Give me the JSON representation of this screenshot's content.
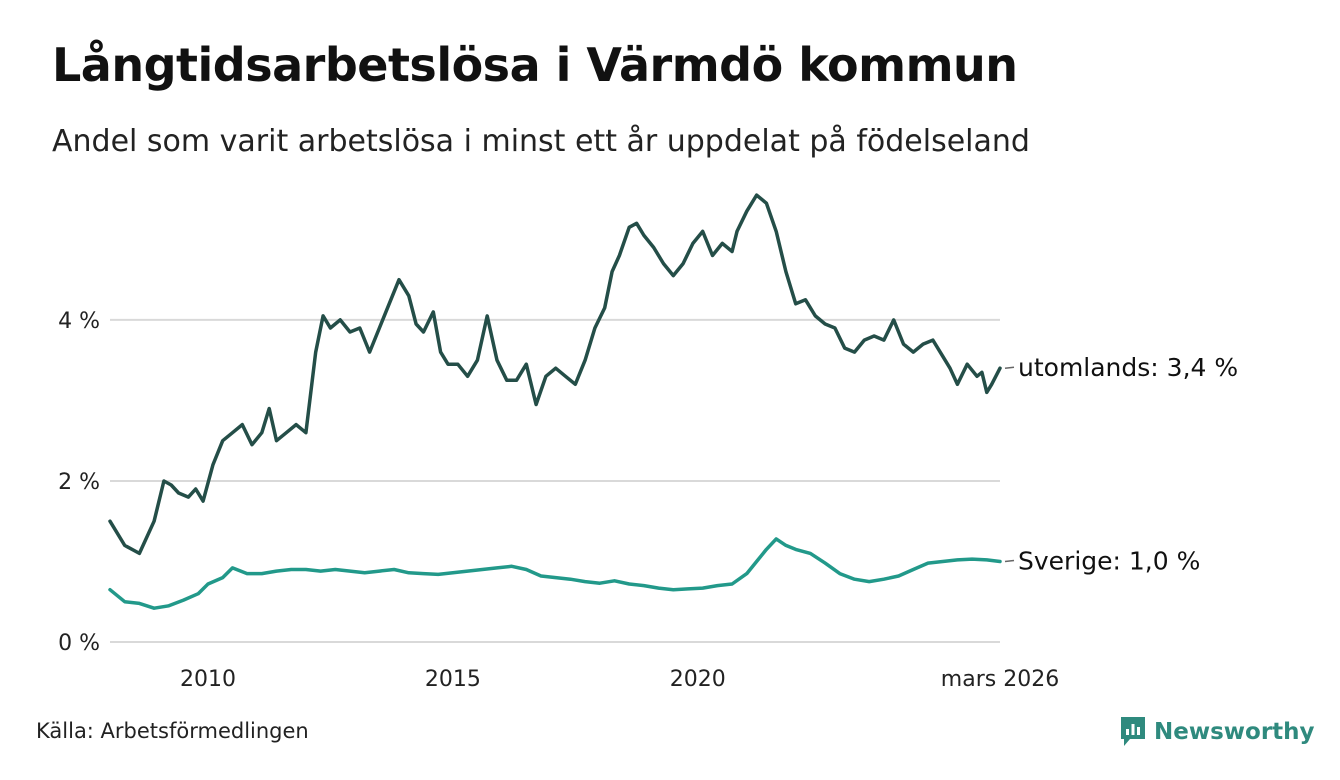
{
  "header": {
    "title": "Långtidsarbetslösa i Värmdö kommun",
    "subtitle": "Andel som varit arbetslösa i minst ett år uppdelat på födelseland"
  },
  "footer": {
    "source": "Källa: Arbetsförmedlingen",
    "brand": "Newsworthy",
    "brand_icon": "newsworthy-logo-icon"
  },
  "colors": {
    "utomlands": "#244e48",
    "sverige": "#22998a",
    "grid": "#d9d9d9",
    "brand": "#2f8a7e"
  },
  "chart_data": {
    "type": "line",
    "title": "Långtidsarbetslösa i Värmdö kommun",
    "subtitle": "Andel som varit arbetslösa i minst ett år uppdelat på födelseland",
    "xlabel": "",
    "ylabel": "",
    "x_range": [
      2008.0,
      2026.17
    ],
    "ylim": [
      0,
      5.8
    ],
    "y_ticks": [
      0,
      2,
      4
    ],
    "y_tick_labels": [
      "0 %",
      "2 %",
      "4 %"
    ],
    "x_ticks": [
      2010,
      2015,
      2020,
      2026.17
    ],
    "x_tick_labels": [
      "2010",
      "2015",
      "2020",
      "mars 2026"
    ],
    "grid": true,
    "legend": "end-of-line labels at right",
    "series": [
      {
        "name": "utomlands",
        "end_label": "utomlands: 3,4 %",
        "x": [
          2008.0,
          2008.3,
          2008.6,
          2008.9,
          2009.1,
          2009.25,
          2009.4,
          2009.6,
          2009.75,
          2009.9,
          2010.1,
          2010.3,
          2010.5,
          2010.7,
          2010.9,
          2011.1,
          2011.25,
          2011.4,
          2011.6,
          2011.8,
          2012.0,
          2012.2,
          2012.35,
          2012.5,
          2012.7,
          2012.9,
          2013.1,
          2013.3,
          2013.5,
          2013.7,
          2013.9,
          2014.1,
          2014.25,
          2014.4,
          2014.6,
          2014.75,
          2014.9,
          2015.1,
          2015.3,
          2015.5,
          2015.7,
          2015.9,
          2016.1,
          2016.3,
          2016.5,
          2016.7,
          2016.9,
          2017.1,
          2017.3,
          2017.5,
          2017.7,
          2017.9,
          2018.1,
          2018.25,
          2018.4,
          2018.6,
          2018.75,
          2018.9,
          2019.1,
          2019.3,
          2019.5,
          2019.7,
          2019.9,
          2020.1,
          2020.3,
          2020.5,
          2020.7,
          2020.8,
          2021.0,
          2021.2,
          2021.4,
          2021.6,
          2021.8,
          2022.0,
          2022.2,
          2022.4,
          2022.6,
          2022.8,
          2023.0,
          2023.2,
          2023.4,
          2023.6,
          2023.8,
          2024.0,
          2024.2,
          2024.4,
          2024.6,
          2024.8,
          2025.0,
          2025.15,
          2025.3,
          2025.5,
          2025.7,
          2025.8,
          2025.9,
          2026.0,
          2026.17
        ],
        "values": [
          1.5,
          1.2,
          1.1,
          1.5,
          2.0,
          1.95,
          1.85,
          1.8,
          1.9,
          1.75,
          2.2,
          2.5,
          2.6,
          2.7,
          2.45,
          2.6,
          2.9,
          2.5,
          2.6,
          2.7,
          2.6,
          3.6,
          4.05,
          3.9,
          4.0,
          3.85,
          3.9,
          3.6,
          3.9,
          4.2,
          4.5,
          4.3,
          3.95,
          3.85,
          4.1,
          3.6,
          3.45,
          3.45,
          3.3,
          3.5,
          4.05,
          3.5,
          3.25,
          3.25,
          3.45,
          2.95,
          3.3,
          3.4,
          3.3,
          3.2,
          3.5,
          3.9,
          4.15,
          4.6,
          4.8,
          5.15,
          5.2,
          5.05,
          4.9,
          4.7,
          4.55,
          4.7,
          4.95,
          5.1,
          4.8,
          4.95,
          4.85,
          5.1,
          5.35,
          5.55,
          5.45,
          5.1,
          4.6,
          4.2,
          4.25,
          4.05,
          3.95,
          3.9,
          3.65,
          3.6,
          3.75,
          3.8,
          3.75,
          4.0,
          3.7,
          3.6,
          3.7,
          3.75,
          3.55,
          3.4,
          3.2,
          3.45,
          3.3,
          3.35,
          3.1,
          3.2,
          3.4
        ]
      },
      {
        "name": "Sverige",
        "end_label": "Sverige: 1,0 %",
        "x": [
          2008.0,
          2008.3,
          2008.6,
          2008.9,
          2009.2,
          2009.5,
          2009.8,
          2010.0,
          2010.3,
          2010.5,
          2010.8,
          2011.1,
          2011.4,
          2011.7,
          2012.0,
          2012.3,
          2012.6,
          2012.9,
          2013.2,
          2013.5,
          2013.8,
          2014.1,
          2014.4,
          2014.7,
          2015.0,
          2015.3,
          2015.6,
          2015.9,
          2016.2,
          2016.5,
          2016.8,
          2017.1,
          2017.4,
          2017.7,
          2018.0,
          2018.3,
          2018.6,
          2018.9,
          2019.2,
          2019.5,
          2019.8,
          2020.1,
          2020.4,
          2020.7,
          2021.0,
          2021.2,
          2021.4,
          2021.6,
          2021.8,
          2022.0,
          2022.3,
          2022.6,
          2022.9,
          2023.2,
          2023.5,
          2023.8,
          2024.1,
          2024.4,
          2024.7,
          2025.0,
          2025.3,
          2025.6,
          2025.9,
          2026.17
        ],
        "values": [
          0.65,
          0.5,
          0.48,
          0.42,
          0.45,
          0.52,
          0.6,
          0.72,
          0.8,
          0.92,
          0.85,
          0.85,
          0.88,
          0.9,
          0.9,
          0.88,
          0.9,
          0.88,
          0.86,
          0.88,
          0.9,
          0.86,
          0.85,
          0.84,
          0.86,
          0.88,
          0.9,
          0.92,
          0.94,
          0.9,
          0.82,
          0.8,
          0.78,
          0.75,
          0.73,
          0.76,
          0.72,
          0.7,
          0.67,
          0.65,
          0.66,
          0.67,
          0.7,
          0.72,
          0.85,
          1.0,
          1.15,
          1.28,
          1.2,
          1.15,
          1.1,
          0.98,
          0.85,
          0.78,
          0.75,
          0.78,
          0.82,
          0.9,
          0.98,
          1.0,
          1.02,
          1.03,
          1.02,
          1.0
        ]
      }
    ]
  }
}
